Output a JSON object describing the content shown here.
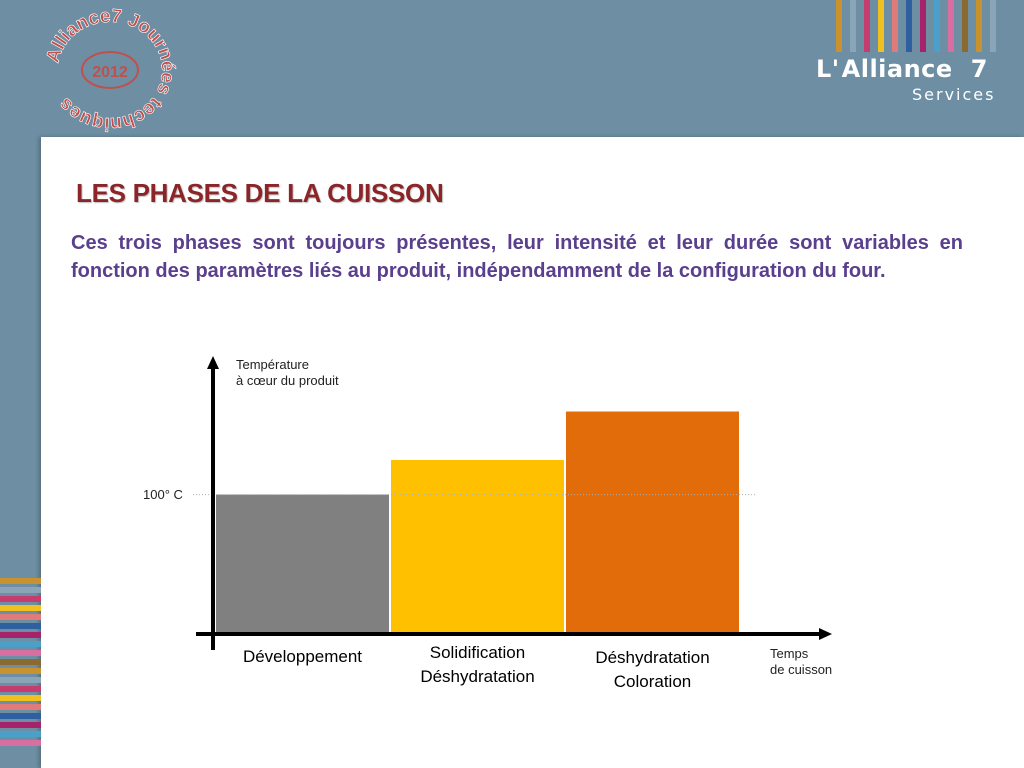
{
  "badge": {
    "year": "2012",
    "ring_text": "Alliance7 Journées techniques"
  },
  "logo": {
    "name": "L'Alliance 7",
    "name_part1": "L'",
    "name_part2": "Alliance",
    "name_part3": "7",
    "subtitle": "Services"
  },
  "slide": {
    "title": "LES PHASES DE LA CUISSON",
    "intro": "Ces trois phases sont toujours présentes, leur intensité et leur durée sont variables en fonction des paramètres liés au produit, indépendamment de la configuration du four."
  },
  "colors": {
    "background": "#6e8fa3",
    "title": "#8b2528",
    "intro_text": "#5a3f8d",
    "badge": "#c0504d",
    "stripes": [
      "#c8932e",
      "#8aa5b8",
      "#c43d6e",
      "#f0c020",
      "#e07b7b",
      "#2e5f9e",
      "#a6226b",
      "#4aa0c8",
      "#d76fa3",
      "#8a6a30"
    ]
  },
  "chart_data": {
    "type": "bar",
    "ylabel": "Température\nà cœur du produit",
    "xlabel": "Temps\nde cuisson",
    "categories": [
      "Développement",
      "Solidification\nDéshydratation",
      "Déshydratation\nColoration"
    ],
    "values": [
      1.0,
      1.25,
      1.6
    ],
    "bar_colors": [
      "#808080",
      "#ffc000",
      "#e36c0a"
    ],
    "reference_line": {
      "label": "100° C",
      "value": 1.0
    },
    "ylim": [
      0,
      1.9
    ]
  }
}
